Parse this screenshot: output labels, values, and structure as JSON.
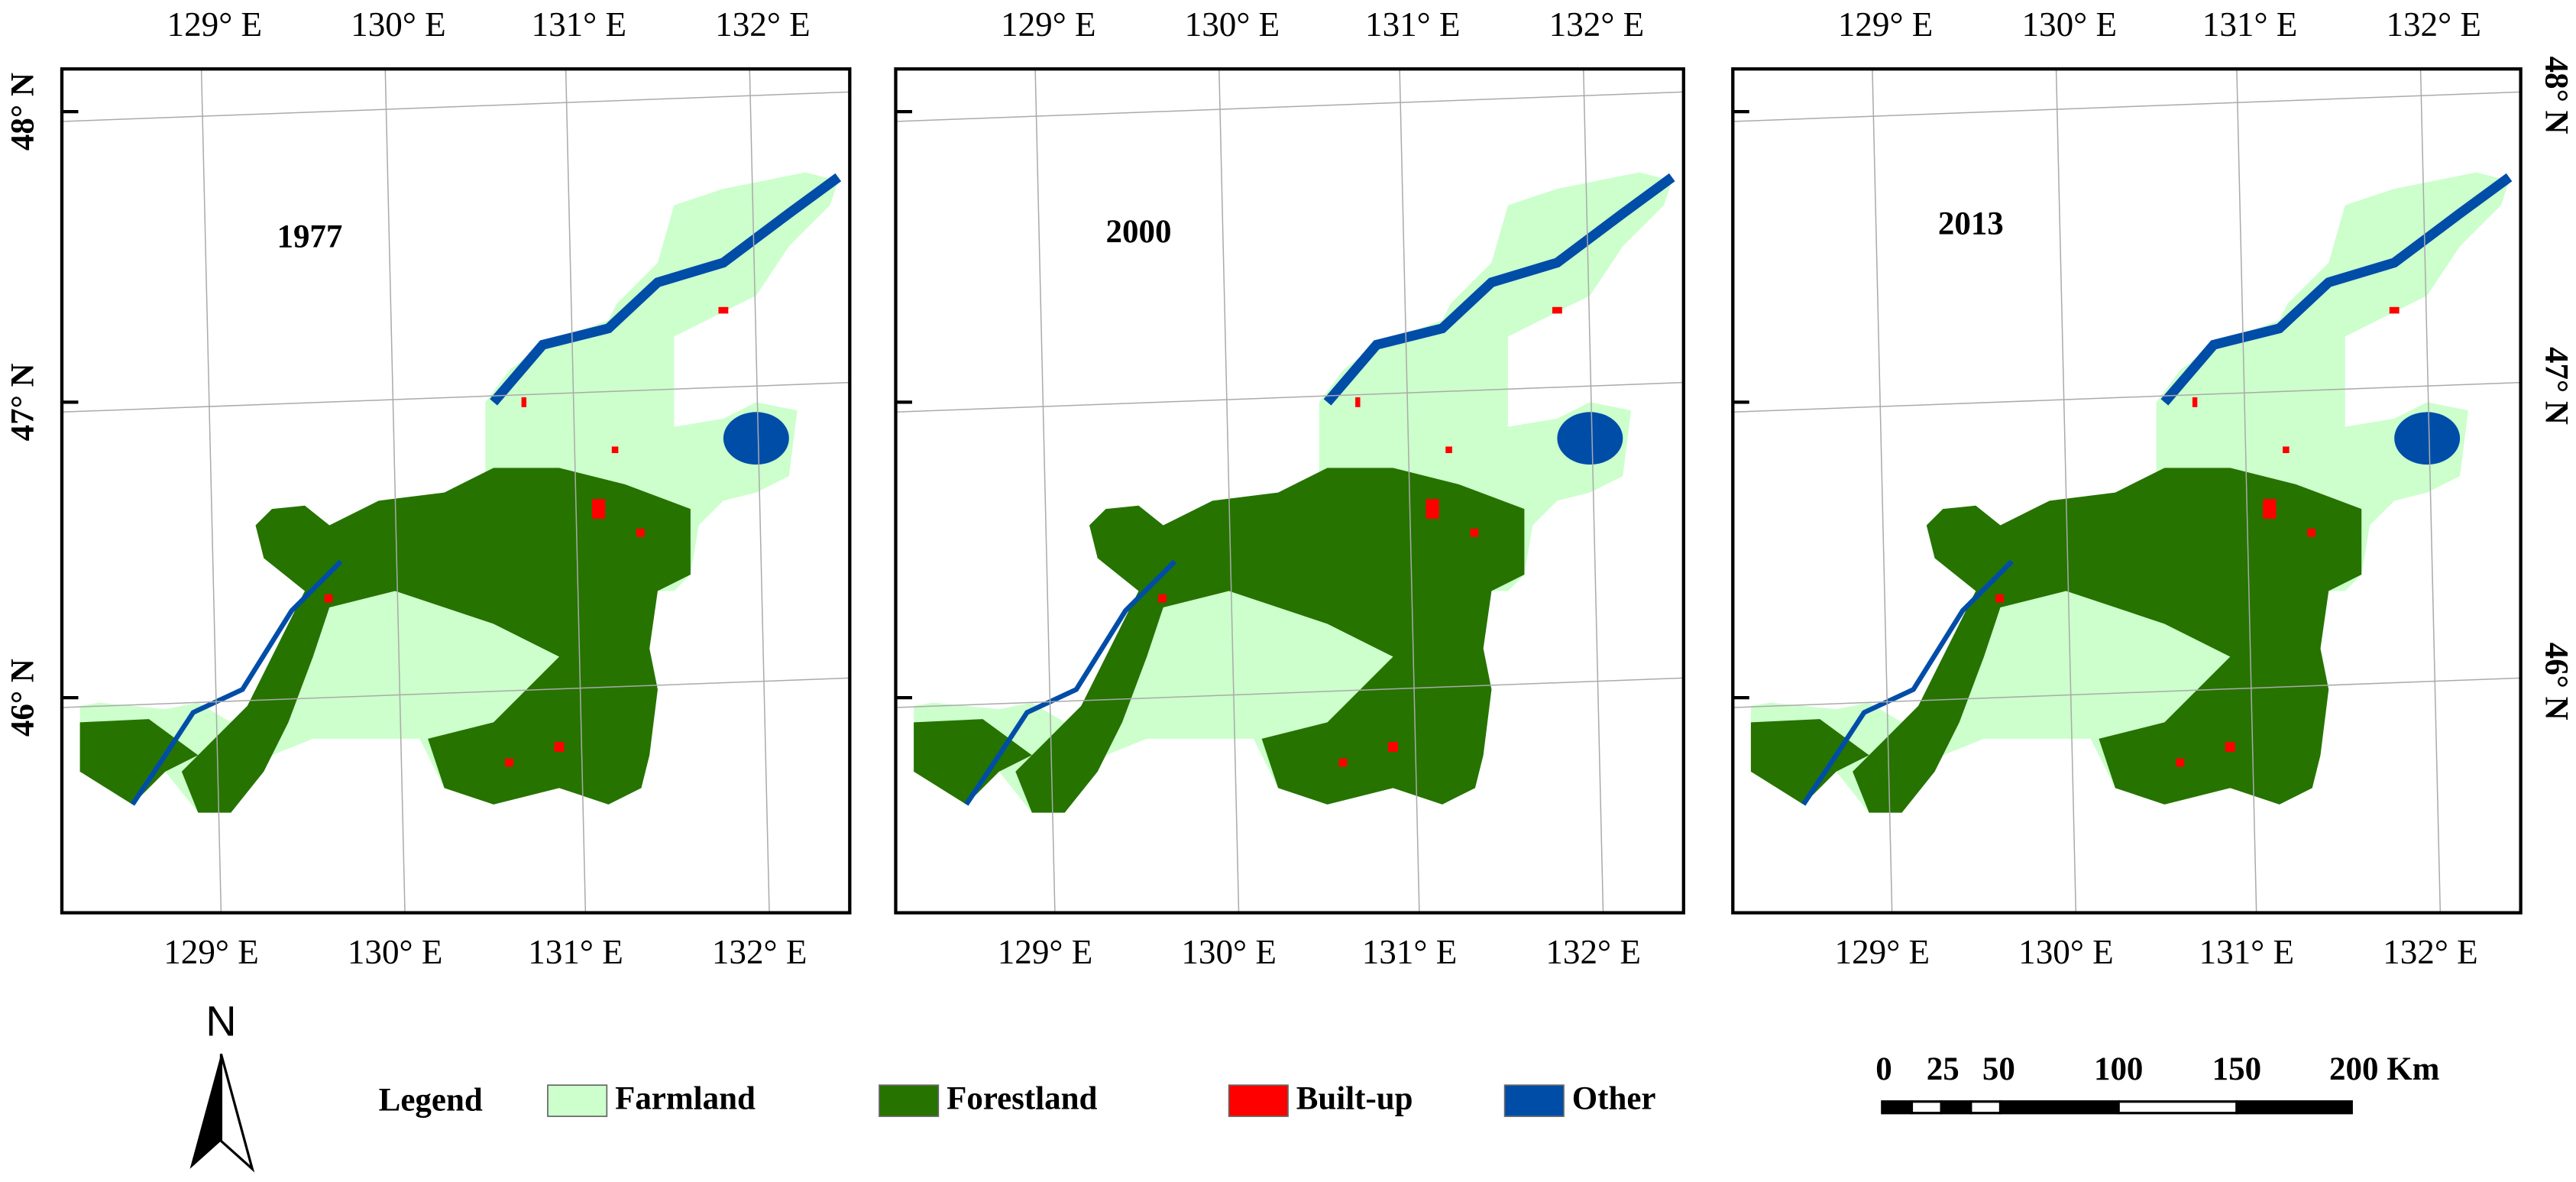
{
  "panels": [
    {
      "year": "1977"
    },
    {
      "year": "2000"
    },
    {
      "year": "2013"
    }
  ],
  "longitude_labels": [
    "129° E",
    "130° E",
    "131° E",
    "132° E"
  ],
  "latitude_labels": [
    "48° N",
    "47° N",
    "46° N"
  ],
  "north_arrow": "N",
  "legend": {
    "title": "Legend",
    "items": [
      {
        "label": "Farmland",
        "color": "#ccffcc"
      },
      {
        "label": "Forestland",
        "color": "#267300"
      },
      {
        "label": "Built-up",
        "color": "#ff0000"
      },
      {
        "label": "Other",
        "color": "#004da8"
      }
    ]
  },
  "scale_bar": {
    "labels": [
      "0",
      "25",
      "50",
      "100",
      "150",
      "200 Km"
    ]
  }
}
